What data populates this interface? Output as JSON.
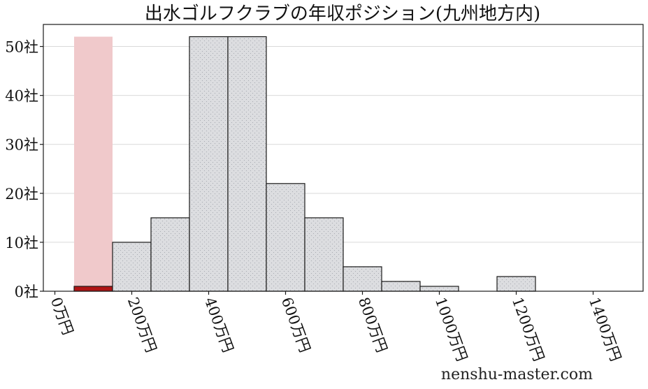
{
  "chart_data": {
    "type": "bar",
    "title": "出水ゴルフクラブの年収ポジション(九州地方内)",
    "bin_width": 100,
    "bins": [
      {
        "start": 150,
        "end": 250,
        "value": 10
      },
      {
        "start": 250,
        "end": 350,
        "value": 15
      },
      {
        "start": 350,
        "end": 450,
        "value": 52
      },
      {
        "start": 450,
        "end": 550,
        "value": 52
      },
      {
        "start": 550,
        "end": 650,
        "value": 22
      },
      {
        "start": 650,
        "end": 750,
        "value": 15
      },
      {
        "start": 750,
        "end": 850,
        "value": 5
      },
      {
        "start": 850,
        "end": 950,
        "value": 2
      },
      {
        "start": 950,
        "end": 1050,
        "value": 1
      },
      {
        "start": 1150,
        "end": 1250,
        "value": 3
      }
    ],
    "highlight": {
      "start": 50,
      "end": 150,
      "value": 1,
      "band_value": 52
    },
    "xlim": [
      -30,
      1530
    ],
    "ylim": [
      0,
      54.5
    ],
    "x_ticks": [
      {
        "value": 0,
        "label": "0万円"
      },
      {
        "value": 200,
        "label": "200万円"
      },
      {
        "value": 400,
        "label": "400万円"
      },
      {
        "value": 600,
        "label": "600万円"
      },
      {
        "value": 800,
        "label": "800万円"
      },
      {
        "value": 1000,
        "label": "1000万円"
      },
      {
        "value": 1200,
        "label": "1200万円"
      },
      {
        "value": 1400,
        "label": "1400万円"
      }
    ],
    "y_ticks": [
      {
        "value": 0,
        "label": "0社"
      },
      {
        "value": 10,
        "label": "10社"
      },
      {
        "value": 20,
        "label": "20社"
      },
      {
        "value": 30,
        "label": "30社"
      },
      {
        "value": 40,
        "label": "40社"
      },
      {
        "value": 50,
        "label": "50社"
      }
    ],
    "grid": true,
    "colors": {
      "bar": "#dcdde0",
      "highlight": "#b01414",
      "highlight_band": "#f0c9cb"
    }
  },
  "watermark": "nenshu-master.com"
}
